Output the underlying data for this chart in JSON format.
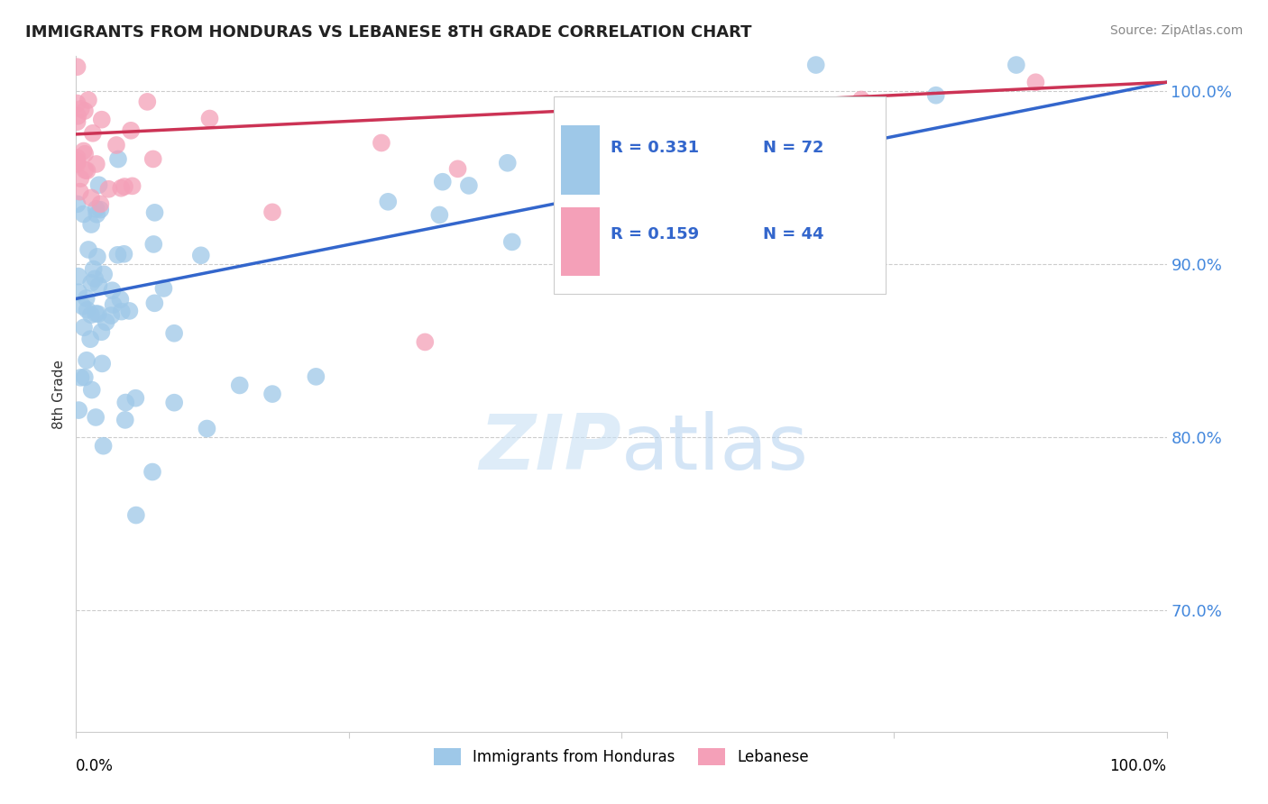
{
  "title": "IMMIGRANTS FROM HONDURAS VS LEBANESE 8TH GRADE CORRELATION CHART",
  "source": "Source: ZipAtlas.com",
  "ylabel": "8th Grade",
  "right_ytick_values": [
    70.0,
    80.0,
    90.0,
    100.0
  ],
  "legend_blue_label": "Immigrants from Honduras",
  "legend_pink_label": "Lebanese",
  "R_blue": 0.331,
  "N_blue": 72,
  "R_pink": 0.159,
  "N_pink": 44,
  "blue_color": "#9ec8e8",
  "pink_color": "#f4a0b8",
  "blue_line_color": "#3366cc",
  "pink_line_color": "#cc3355",
  "blue_line_x0": 0,
  "blue_line_y0": 88.0,
  "blue_line_x1": 100,
  "blue_line_y1": 100.5,
  "pink_line_x0": 0,
  "pink_line_y0": 97.5,
  "pink_line_x1": 100,
  "pink_line_y1": 100.5,
  "xlim": [
    0,
    100
  ],
  "ylim": [
    63,
    102
  ],
  "gridline_y": [
    70.0,
    80.0,
    90.0,
    100.0
  ],
  "watermark_text": "ZIPatlas",
  "watermark_color": "#c8e0f4",
  "watermark_alpha": 0.6
}
